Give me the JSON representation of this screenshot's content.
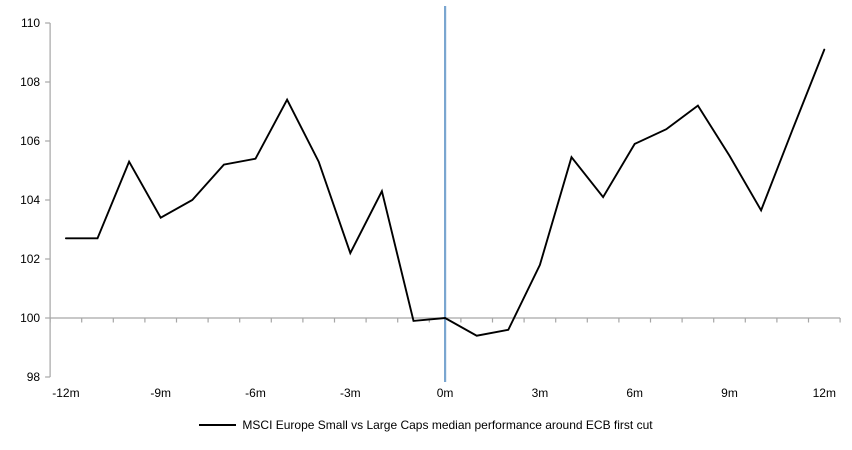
{
  "chart_data": {
    "type": "line",
    "title": "",
    "xlabel": "",
    "ylabel": "",
    "x": [
      -12,
      -11,
      -10,
      -9,
      -8,
      -7,
      -6,
      -5,
      -4,
      -3,
      -2,
      -1,
      0,
      1,
      2,
      3,
      4,
      5,
      6,
      7,
      8,
      9,
      10,
      11,
      12
    ],
    "series": [
      {
        "name": "MSCI Europe Small vs Large Caps median performance around ECB first cut",
        "color": "#000000",
        "values": [
          102.7,
          102.7,
          105.3,
          103.4,
          104.0,
          105.2,
          105.4,
          107.4,
          105.3,
          102.2,
          104.3,
          99.9,
          100.0,
          99.4,
          99.6,
          101.8,
          105.45,
          104.1,
          105.9,
          106.4,
          107.2,
          105.5,
          103.65,
          106.4,
          109.1
        ]
      }
    ],
    "ylim": [
      98,
      110
    ],
    "xlim": [
      -12.5,
      12.5
    ],
    "y_ticks": [
      98,
      100,
      102,
      104,
      106,
      108,
      110
    ],
    "x_tick_labels": [
      {
        "x": -12,
        "label": "-12m"
      },
      {
        "x": -9,
        "label": "-9m"
      },
      {
        "x": -6,
        "label": "-6m"
      },
      {
        "x": -3,
        "label": "-3m"
      },
      {
        "x": 0,
        "label": "0m"
      },
      {
        "x": 3,
        "label": "3m"
      },
      {
        "x": 6,
        "label": "6m"
      },
      {
        "x": 9,
        "label": "9m"
      },
      {
        "x": 12,
        "label": "12m"
      }
    ],
    "x_minor_tick_step": 1,
    "baseline": {
      "y": 100
    },
    "event_line": {
      "x": 0
    },
    "colors": {
      "series_line": "#000000",
      "event_line": "#7aa6d0",
      "axis": "#a6a6a6",
      "tick_text": "#000000"
    },
    "grid": "off",
    "legend_position": "bottom-center"
  }
}
